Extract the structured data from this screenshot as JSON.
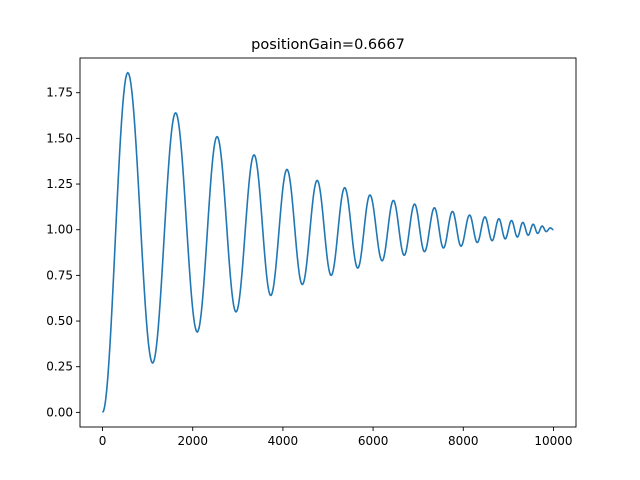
{
  "chart_data": {
    "type": "line",
    "title": "positionGain=0.6667",
    "xlabel": "",
    "ylabel": "",
    "xlim": [
      -500,
      10500
    ],
    "ylim": [
      -0.08,
      1.94
    ],
    "x_ticks": [
      0,
      2000,
      4000,
      6000,
      8000,
      10000
    ],
    "x_tick_labels": [
      "0",
      "2000",
      "4000",
      "6000",
      "8000",
      "10000"
    ],
    "y_ticks": [
      0.0,
      0.25,
      0.5,
      0.75,
      1.0,
      1.25,
      1.5,
      1.75
    ],
    "y_tick_labels": [
      "0.00",
      "0.25",
      "0.50",
      "0.75",
      "1.00",
      "1.25",
      "1.50",
      "1.75"
    ],
    "grid": false,
    "line_color": "#1f77b4",
    "series": [
      {
        "x": [
          0,
          560,
          1110,
          1620,
          2100,
          2540,
          2960,
          3360,
          3730,
          4090,
          4430,
          4760,
          5070,
          5370,
          5660,
          5930,
          6200,
          6450,
          6690,
          6920,
          7140,
          7360,
          7560,
          7760,
          7950,
          8140,
          8310,
          8480,
          8640,
          8790,
          8930,
          9070,
          9200,
          9320,
          9440,
          9550,
          9650,
          9750,
          9840,
          9930,
          10000
        ],
        "y": [
          0.0,
          1.86,
          0.27,
          1.64,
          0.44,
          1.51,
          0.55,
          1.41,
          0.64,
          1.33,
          0.7,
          1.27,
          0.75,
          1.23,
          0.79,
          1.19,
          0.83,
          1.16,
          0.86,
          1.14,
          0.88,
          1.12,
          0.9,
          1.1,
          0.91,
          1.08,
          0.93,
          1.07,
          0.94,
          1.06,
          0.95,
          1.05,
          0.96,
          1.04,
          0.97,
          1.03,
          0.98,
          1.02,
          0.99,
          1.01,
          1.0
        ]
      }
    ]
  }
}
